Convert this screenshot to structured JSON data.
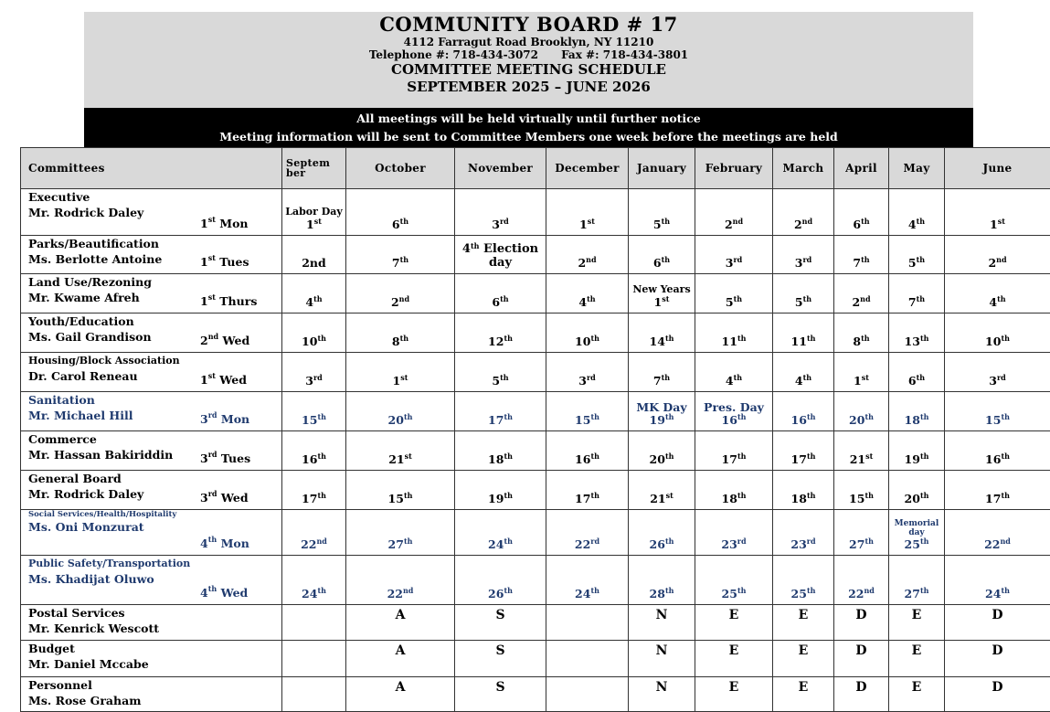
{
  "header": {
    "title": "COMMUNITY BOARD # 17",
    "address": "4112 Farragut Road  Brooklyn, NY 11210",
    "phone": "Telephone #: 718-434-3072      Fax #: 718-434-3801",
    "subtitle": "COMMITTEE MEETING SCHEDULE",
    "period": "SEPTEMBER 2025 – JUNE 2026"
  },
  "notice": {
    "line1": "All meetings will be held virtually until further notice",
    "line2": "Meeting information will be sent to Committee Members one week before the meetings are held"
  },
  "colors": {
    "header_bg": "#d9d9d9",
    "notice_bg": "#000000",
    "blue_text": "#1f3a6e"
  },
  "columns": [
    "Committees",
    "Septem ber",
    "October",
    "November",
    "December",
    "January",
    "February",
    "March",
    "April",
    "May",
    "June"
  ],
  "rows": [
    {
      "committee": "Executive",
      "chair": "Mr. Rodrick Daley",
      "day": {
        "n": "1",
        "s": "st",
        "w": " Mon"
      },
      "blue": false,
      "cells": [
        {
          "note": "Labor Day",
          "n": "1",
          "s": "st"
        },
        {
          "n": "6",
          "s": "th"
        },
        {
          "n": "3",
          "s": "rd"
        },
        {
          "n": "1",
          "s": "st"
        },
        {
          "n": "5",
          "s": "th"
        },
        {
          "n": "2",
          "s": "nd"
        },
        {
          "n": "2",
          "s": "nd"
        },
        {
          "n": "6",
          "s": "th"
        },
        {
          "n": "4",
          "s": "th"
        },
        {
          "n": "1",
          "s": "st"
        }
      ]
    },
    {
      "committee": "Parks/Beautification",
      "chair": "Ms. Berlotte Antoine",
      "day": {
        "n": "1",
        "s": "st",
        "w": " Tues"
      },
      "blue": false,
      "cells": [
        {
          "n": "2nd",
          "s": ""
        },
        {
          "n": "7",
          "s": "th"
        },
        {
          "n": "4",
          "s": "th",
          "after": " Election day"
        },
        {
          "n": "2",
          "s": "nd"
        },
        {
          "n": "6",
          "s": "th"
        },
        {
          "n": "3",
          "s": "rd"
        },
        {
          "n": "3",
          "s": "rd"
        },
        {
          "n": "7",
          "s": "th"
        },
        {
          "n": "5",
          "s": "th"
        },
        {
          "n": "2",
          "s": "nd"
        }
      ]
    },
    {
      "committee": "Land Use/Rezoning",
      "chair": "Mr. Kwame Afreh",
      "day": {
        "n": "1",
        "s": "st",
        "w": " Thurs"
      },
      "blue": false,
      "cells": [
        {
          "n": "4",
          "s": "th"
        },
        {
          "n": "2",
          "s": "nd"
        },
        {
          "n": "6",
          "s": "th"
        },
        {
          "n": "4",
          "s": "th"
        },
        {
          "note": "New Years",
          "n": "1",
          "s": "st"
        },
        {
          "n": "5",
          "s": "th"
        },
        {
          "n": "5",
          "s": "th"
        },
        {
          "n": "2",
          "s": "nd"
        },
        {
          "n": "7",
          "s": "th"
        },
        {
          "n": "4",
          "s": "th"
        }
      ]
    },
    {
      "committee": "Youth/Education",
      "chair": "Ms. Gail Grandison",
      "day": {
        "n": "2",
        "s": "nd",
        "w": " Wed"
      },
      "blue": false,
      "cells": [
        {
          "n": "10",
          "s": "th"
        },
        {
          "n": "8",
          "s": "th"
        },
        {
          "n": "12",
          "s": "th"
        },
        {
          "n": "10",
          "s": "th"
        },
        {
          "n": "14",
          "s": "th"
        },
        {
          "n": "11",
          "s": "th"
        },
        {
          "n": "11",
          "s": "th"
        },
        {
          "n": "8",
          "s": "th"
        },
        {
          "n": "13",
          "s": "th"
        },
        {
          "n": "10",
          "s": "th"
        }
      ]
    },
    {
      "committee": "Housing/Block Association",
      "chair": "Dr. Carol Reneau",
      "day": {
        "n": "1",
        "s": "st",
        "w": " Wed"
      },
      "blue": false,
      "small": true,
      "cells": [
        {
          "n": "3",
          "s": "rd"
        },
        {
          "n": "1",
          "s": "st"
        },
        {
          "n": "5",
          "s": "th"
        },
        {
          "n": "3",
          "s": "rd"
        },
        {
          "n": "7",
          "s": "th"
        },
        {
          "n": "4",
          "s": "th"
        },
        {
          "n": "4",
          "s": "th"
        },
        {
          "n": "1",
          "s": "st"
        },
        {
          "n": "6",
          "s": "th"
        },
        {
          "n": "3",
          "s": "rd"
        }
      ]
    },
    {
      "committee": "Sanitation",
      "chair": "Mr. Michael Hill",
      "day": {
        "n": "3",
        "s": "rd",
        "w": " Mon"
      },
      "blue": true,
      "cells": [
        {
          "n": "15",
          "s": "th"
        },
        {
          "n": "20",
          "s": "th"
        },
        {
          "n": "17",
          "s": "th"
        },
        {
          "n": "15",
          "s": "th"
        },
        {
          "note": "MK Day",
          "n": "19",
          "s": "th"
        },
        {
          "note": "Pres. Day",
          "n": "16",
          "s": "th"
        },
        {
          "n": "16",
          "s": "th"
        },
        {
          "n": "20",
          "s": "th"
        },
        {
          "n": "18",
          "s": "th"
        },
        {
          "n": "15",
          "s": "th"
        }
      ]
    },
    {
      "committee": "Commerce",
      "chair": "Mr. Hassan Bakiriddin",
      "day": {
        "n": "3",
        "s": "rd",
        "w": " Tues"
      },
      "blue": false,
      "cells": [
        {
          "n": "16",
          "s": "th"
        },
        {
          "n": "21",
          "s": "st"
        },
        {
          "n": "18",
          "s": "th"
        },
        {
          "n": "16",
          "s": "th"
        },
        {
          "n": "20",
          "s": "th"
        },
        {
          "n": "17",
          "s": "th"
        },
        {
          "n": "17",
          "s": "th"
        },
        {
          "n": "21",
          "s": "st"
        },
        {
          "n": "19",
          "s": "th"
        },
        {
          "n": "16",
          "s": "th"
        }
      ]
    },
    {
      "committee": "General Board",
      "chair": "Mr. Rodrick Daley",
      "day": {
        "n": "3",
        "s": "rd",
        "w": " Wed"
      },
      "blue": false,
      "cells": [
        {
          "n": "17",
          "s": "th"
        },
        {
          "n": "15",
          "s": "th"
        },
        {
          "n": "19",
          "s": "th"
        },
        {
          "n": "17",
          "s": "th"
        },
        {
          "n": "21",
          "s": "st"
        },
        {
          "n": "18",
          "s": "th"
        },
        {
          "n": "18",
          "s": "th"
        },
        {
          "n": "15",
          "s": "th"
        },
        {
          "n": "20",
          "s": "th"
        },
        {
          "n": "17",
          "s": "th"
        }
      ]
    },
    {
      "committee": "Social Services/Health/Hospitality",
      "chair": "Ms. Oni Monzurat",
      "day": {
        "n": "4",
        "s": "th",
        "w": " Mon"
      },
      "blue": true,
      "tiny": true,
      "cells": [
        {
          "n": "22",
          "s": "nd"
        },
        {
          "n": "27",
          "s": "th"
        },
        {
          "n": "24",
          "s": "th"
        },
        {
          "n": "22",
          "s": "rd"
        },
        {
          "n": "26",
          "s": "th"
        },
        {
          "n": "23",
          "s": "rd"
        },
        {
          "n": "23",
          "s": "rd"
        },
        {
          "n": "27",
          "s": "th"
        },
        {
          "note": "Memorial day",
          "n": "25",
          "s": "th"
        },
        {
          "n": "22",
          "s": "nd"
        }
      ]
    },
    {
      "committee": "Public Safety/Transportation",
      "chair": "Ms. Khadijat Oluwo",
      "day": {
        "n": "4",
        "s": "th",
        "w": " Wed"
      },
      "blue": true,
      "small": true,
      "cells": [
        {
          "n": "24",
          "s": "th"
        },
        {
          "n": "22",
          "s": "nd"
        },
        {
          "n": "26",
          "s": "th"
        },
        {
          "n": "24",
          "s": "th"
        },
        {
          "n": "28",
          "s": "th"
        },
        {
          "n": "25",
          "s": "th"
        },
        {
          "n": "25",
          "s": "th"
        },
        {
          "n": "22",
          "s": "nd"
        },
        {
          "n": "27",
          "s": "th"
        },
        {
          "n": "24",
          "s": "th"
        }
      ]
    },
    {
      "committee": "Postal Services",
      "chair": "Mr. Kenrick Wescott",
      "blue": false,
      "letters": [
        "",
        "A",
        "S",
        "",
        "N",
        "E",
        "E",
        "D",
        "E",
        "D"
      ]
    },
    {
      "committee": "Budget",
      "chair": "Mr. Daniel Mccabe",
      "blue": false,
      "letters": [
        "",
        "A",
        "S",
        "",
        "N",
        "E",
        "E",
        "D",
        "E",
        "D"
      ]
    },
    {
      "committee": "Personnel",
      "chair": "Ms. Rose Graham",
      "blue": false,
      "letters": [
        "",
        "A",
        "S",
        "",
        "N",
        "E",
        "E",
        "D",
        "E",
        "D"
      ]
    }
  ]
}
